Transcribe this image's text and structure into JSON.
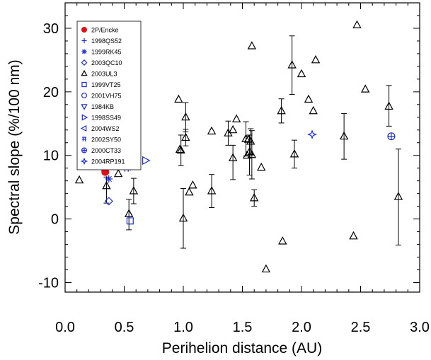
{
  "chart_data": {
    "type": "scatter",
    "xlabel": "Perihelion distance (AU)",
    "ylabel": "Spectral slope (%/100 nm)",
    "xlim": [
      0.0,
      3.0
    ],
    "ylim": [
      -11.5,
      34
    ],
    "x_ticks": [
      "0.0",
      "0.5",
      "1.0",
      "1.5",
      "2.0",
      "2.5",
      "3.0"
    ],
    "y_ticks": [
      "-10",
      "0",
      "10",
      "20",
      "30"
    ],
    "grid": false,
    "legend_position": "top-left",
    "colors": {
      "highlight": "#e0101a",
      "blue": "#1a2fd6",
      "black": "#000000"
    },
    "series": [
      {
        "name": "2P/Encke",
        "marker": "filled-circle",
        "color": "#e0101a",
        "points": [
          {
            "x": 0.34,
            "y": 7.4
          }
        ]
      },
      {
        "name": "1998QS52",
        "marker": "plus",
        "color": "#1a2fd6",
        "points": [
          {
            "x": 0.31,
            "y": 8.2
          }
        ]
      },
      {
        "name": "1999RK45",
        "marker": "asterisk",
        "color": "#1a2fd6",
        "points": [
          {
            "x": 0.37,
            "y": 6.3
          }
        ]
      },
      {
        "name": "2003QC10",
        "marker": "diamond",
        "color": "#1a2fd6",
        "points": [
          {
            "x": 0.37,
            "y": 2.8
          }
        ]
      },
      {
        "name": "2003UL3",
        "marker": "triangle-up",
        "color": "#000000",
        "points": [
          {
            "x": 0.12,
            "y": 6.1
          },
          {
            "x": 0.35,
            "y": 5.2,
            "yerr": [
              2.7,
              1.4
            ]
          },
          {
            "x": 0.45,
            "y": 7.1
          },
          {
            "x": 0.54,
            "y": 0.8,
            "yerr": [
              2.5,
              2.3
            ]
          },
          {
            "x": 0.58,
            "y": 4.4,
            "yerr": [
              2.0,
              2.0
            ]
          },
          {
            "x": 0.96,
            "y": 18.8
          },
          {
            "x": 0.97,
            "y": 10.9
          },
          {
            "x": 0.98,
            "y": 10.8,
            "yerr": [
              2.4,
              2.4
            ]
          },
          {
            "x": 1.0,
            "y": 0.1,
            "yerr": [
              4.7,
              4.7
            ]
          },
          {
            "x": 1.02,
            "y": 16.0,
            "yerr": [
              2.3,
              2.3
            ]
          },
          {
            "x": 1.02,
            "y": 12.8,
            "yerr": [
              1.3,
              1.3
            ]
          },
          {
            "x": 1.05,
            "y": 4.2
          },
          {
            "x": 1.08,
            "y": 5.3
          },
          {
            "x": 1.24,
            "y": 13.8
          },
          {
            "x": 1.24,
            "y": 4.4,
            "yerr": [
              2.6,
              2.6
            ]
          },
          {
            "x": 1.38,
            "y": 13.5,
            "yerr": [
              1.9,
              1.9
            ]
          },
          {
            "x": 1.42,
            "y": 14.0
          },
          {
            "x": 1.42,
            "y": 9.6,
            "yerr": [
              3.4,
              2.0
            ]
          },
          {
            "x": 1.45,
            "y": 15.7
          },
          {
            "x": 1.53,
            "y": 12.6,
            "yerr": [
              2.7,
              2.7
            ]
          },
          {
            "x": 1.54,
            "y": 10.0
          },
          {
            "x": 1.55,
            "y": 12.5
          },
          {
            "x": 1.56,
            "y": 10.5,
            "yerr": [
              3.6,
              2.7
            ]
          },
          {
            "x": 1.57,
            "y": 12.2,
            "yerr": [
              2.0,
              2.0
            ]
          },
          {
            "x": 1.58,
            "y": 10.1,
            "yerr": [
              3.8,
              3.8
            ]
          },
          {
            "x": 1.58,
            "y": 27.2
          },
          {
            "x": 1.6,
            "y": 3.3,
            "yerr": [
              1.3,
              1.3
            ]
          },
          {
            "x": 1.66,
            "y": 8.1
          },
          {
            "x": 1.7,
            "y": -7.9
          },
          {
            "x": 1.83,
            "y": 17.0,
            "yerr": [
              1.9,
              1.9
            ]
          },
          {
            "x": 1.84,
            "y": -3.5
          },
          {
            "x": 1.92,
            "y": 24.2,
            "yerr": [
              4.6,
              4.6
            ]
          },
          {
            "x": 1.94,
            "y": 10.2,
            "yerr": [
              2.2,
              2.2
            ]
          },
          {
            "x": 2.0,
            "y": 22.8
          },
          {
            "x": 2.06,
            "y": 18.8
          },
          {
            "x": 2.1,
            "y": 17.0
          },
          {
            "x": 2.12,
            "y": 25.0
          },
          {
            "x": 2.36,
            "y": 13.0,
            "yerr": [
              3.6,
              3.6
            ]
          },
          {
            "x": 2.44,
            "y": -2.7
          },
          {
            "x": 2.47,
            "y": 30.5
          },
          {
            "x": 2.54,
            "y": 20.4
          },
          {
            "x": 2.74,
            "y": 17.7,
            "yerr": [
              3.1,
              3.3
            ]
          },
          {
            "x": 2.82,
            "y": 3.5,
            "yerr": [
              7.6,
              7.5
            ]
          }
        ]
      },
      {
        "name": "1999VT25",
        "marker": "square",
        "color": "#1a2fd6",
        "points": [
          {
            "x": 0.55,
            "y": -0.3
          }
        ]
      },
      {
        "name": "2001VH75",
        "marker": "circle",
        "color": "#1a2fd6",
        "points": [
          {
            "x": 0.55,
            "y": 9.3
          }
        ]
      },
      {
        "name": "1984KB",
        "marker": "triangle-down",
        "color": "#1a2fd6",
        "points": [
          {
            "x": 0.52,
            "y": 10.0
          }
        ]
      },
      {
        "name": "1998SS49",
        "marker": "triangle-right",
        "color": "#1a2fd6",
        "points": [
          {
            "x": 0.68,
            "y": 9.2
          }
        ]
      },
      {
        "name": "2004WS2",
        "marker": "triangle-left",
        "color": "#1a2fd6",
        "points": [
          {
            "x": 0.53,
            "y": 8.3
          }
        ]
      },
      {
        "name": "2002SY50",
        "marker": "square-line",
        "color": "#1a2fd6",
        "points": [
          {
            "x": 0.52,
            "y": 7.9
          }
        ]
      },
      {
        "name": "2000CT33",
        "marker": "circle-plus",
        "color": "#1a2fd6",
        "points": [
          {
            "x": 2.76,
            "y": 13.0
          }
        ]
      },
      {
        "name": "2004RP191",
        "marker": "four-point-star",
        "color": "#1a2fd6",
        "points": [
          {
            "x": 2.09,
            "y": 13.3
          }
        ]
      }
    ]
  }
}
